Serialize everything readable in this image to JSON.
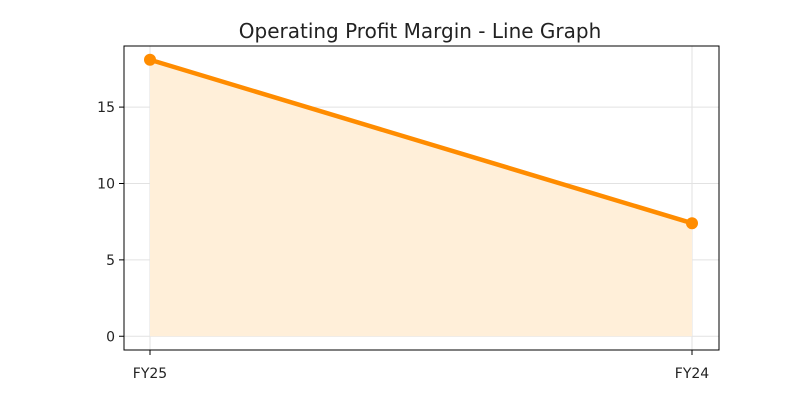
{
  "chart_data": {
    "type": "area",
    "title": "Operating Profit Margin - Line Graph",
    "xlabel": "",
    "ylabel": "",
    "categories": [
      "FY25",
      "FY24"
    ],
    "series": [
      {
        "values": [
          18.1,
          7.4
        ],
        "line_color": "#ff8c00",
        "fill_color": "#ffefd9"
      }
    ],
    "ylim": [
      -0.9,
      19
    ],
    "yticks": [
      0,
      5,
      10,
      15
    ],
    "grid": true,
    "legend": "none"
  }
}
